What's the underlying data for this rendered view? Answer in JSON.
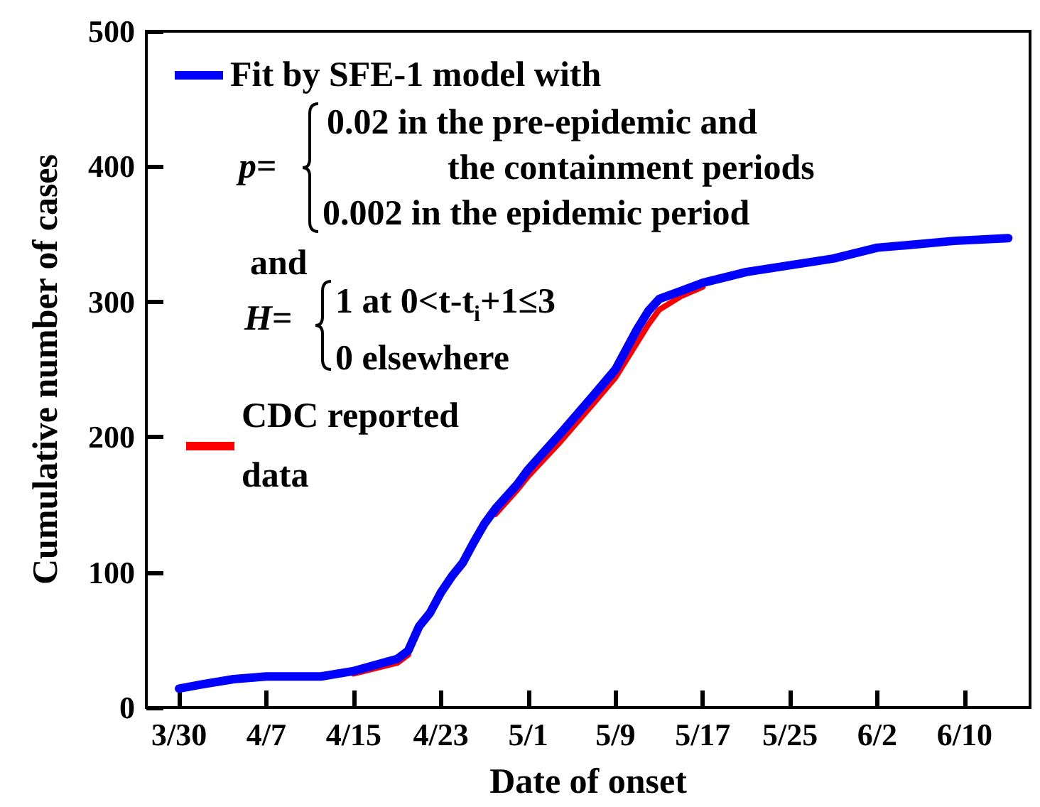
{
  "chart_data": {
    "type": "line",
    "xlabel": "Date of onset",
    "ylabel": "Cumulative number of cases",
    "xlim": [
      "--03-27",
      "--06-16"
    ],
    "xticks": [
      {
        "value": "--03-30",
        "label": "3/30"
      },
      {
        "value": "--04-07",
        "label": "4/7"
      },
      {
        "value": "--04-15",
        "label": "4/15"
      },
      {
        "value": "--04-23",
        "label": "4/23"
      },
      {
        "value": "--05-01",
        "label": "5/1"
      },
      {
        "value": "--05-09",
        "label": "5/9"
      },
      {
        "value": "--05-17",
        "label": "5/17"
      },
      {
        "value": "--05-25",
        "label": "5/25"
      },
      {
        "value": "--06-02",
        "label": "6/2"
      },
      {
        "value": "--06-10",
        "label": "6/10"
      }
    ],
    "ylim": [
      0,
      500
    ],
    "yticks": [
      0,
      100,
      200,
      300,
      400,
      500
    ],
    "series": [
      {
        "name": "CDC reported data",
        "color": "#ff0000",
        "x": [
          "--04-15",
          "--04-19",
          "--04-20",
          "--04-21",
          "--04-28",
          "--04-30",
          "--05-01",
          "--05-04",
          "--05-07",
          "--05-09",
          "--05-10",
          "--05-11",
          "--05-12",
          "--05-13",
          "--05-15",
          "--05-17"
        ],
        "values": [
          25,
          33,
          39,
          null,
          143,
          161,
          171,
          197,
          225,
          244,
          257,
          270,
          283,
          294,
          304,
          311
        ]
      },
      {
        "name": "Fit by SFE-1 model with",
        "color": "#0000ff",
        "x": [
          "--03-30",
          "--04-01",
          "--04-04",
          "--04-07",
          "--04-12",
          "--04-15",
          "--04-19",
          "--04-20",
          "--04-21",
          "--04-22",
          "--04-23",
          "--04-24",
          "--04-25",
          "--04-26",
          "--04-27",
          "--04-28",
          "--04-30",
          "--05-01",
          "--05-04",
          "--05-07",
          "--05-09",
          "--05-10",
          "--05-11",
          "--05-12",
          "--05-13",
          "--05-15",
          "--05-17",
          "--05-21",
          "--05-25",
          "--05-29",
          "--06-02",
          "--06-05",
          "--06-09",
          "--06-14"
        ],
        "values": [
          14,
          17,
          21,
          23,
          23,
          27,
          36,
          42,
          60,
          70,
          85,
          97,
          107,
          122,
          136,
          147,
          165,
          176,
          203,
          231,
          250,
          265,
          280,
          293,
          302,
          308,
          314,
          322,
          327,
          332,
          340,
          342,
          345,
          347
        ]
      }
    ],
    "annotations": [
      "p=",
      "0.02  in the pre-epidemic and",
      "the containment periods",
      "0.002 in the epidemic period",
      "and",
      "H=",
      "1 at 0<t-t$_{i}$+1≤3",
      "0 elsewhere"
    ],
    "legend": "top left",
    "grid": false,
    "marker": "none",
    "line_style": "solid"
  }
}
